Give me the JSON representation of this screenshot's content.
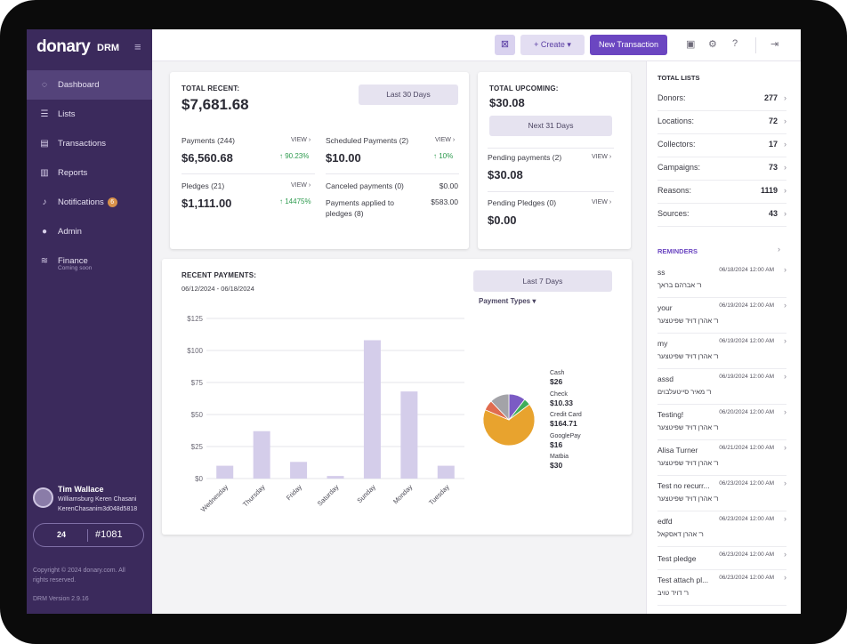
{
  "sidebar": {
    "logo": "donary",
    "logo_suffix": "DRM",
    "items": [
      {
        "label": "Dashboard",
        "icon": "dashboard-icon"
      },
      {
        "label": "Lists",
        "icon": "list-icon"
      },
      {
        "label": "Transactions",
        "icon": "transactions-icon"
      },
      {
        "label": "Reports",
        "icon": "reports-icon"
      },
      {
        "label": "Notifications",
        "icon": "bell-icon",
        "badge": "6"
      },
      {
        "label": "Admin",
        "icon": "user-icon"
      },
      {
        "label": "Finance",
        "icon": "finance-icon",
        "sub": "Coming soon"
      }
    ],
    "user": {
      "name": "Tim Wallace",
      "org": "Williamsburg Keren Chasani",
      "id": "KerenChasanim3d048d5818"
    },
    "pill": {
      "logo": "24",
      "number": "#1081"
    },
    "copyright": "Copyright © 2024 donary.com. All rights reserved.",
    "version": "DRM Version 2.9.16"
  },
  "topbar": {
    "create_label": "+ Create ▾",
    "new_transaction_label": "New Transaction",
    "help": "?"
  },
  "recent": {
    "title": "TOTAL RECENT:",
    "total": "$7,681.68",
    "range": "Last 30 Days",
    "payments_label": "Payments (244)",
    "payments_value": "$6,560.68",
    "payments_change": "90.23%",
    "pledges_label": "Pledges (21)",
    "pledges_value": "$1,111.00",
    "pledges_change": "14475%",
    "scheduled_label": "Scheduled Payments (2)",
    "scheduled_value": "$10.00",
    "scheduled_change": "10%",
    "canceled_label": "Canceled payments (0)",
    "canceled_value": "$0.00",
    "applied_label": "Payments applied to pledges (8)",
    "applied_value": "$583.00",
    "view": "VIEW"
  },
  "upcoming": {
    "title": "TOTAL UPCOMING:",
    "total": "$30.08",
    "range": "Next 31 Days",
    "pending_payments_label": "Pending payments (2)",
    "pending_payments_value": "$30.08",
    "pending_pledges_label": "Pending Pledges (0)",
    "pending_pledges_value": "$0.00",
    "view": "VIEW"
  },
  "recent_payments": {
    "title": "RECENT PAYMENTS:",
    "dates": "06/12/2024 - 06/18/2024",
    "range": "Last 7 Days",
    "types_label": "Payment Types ▾"
  },
  "chart_data": [
    {
      "type": "bar",
      "categories": [
        "Wednesday",
        "Thursday",
        "Friday",
        "Saturday",
        "Sunday",
        "Monday",
        "Tuesday"
      ],
      "values": [
        10,
        37,
        13,
        2,
        108,
        68,
        10
      ],
      "ylim": [
        0,
        125
      ],
      "yticks": [
        "$0",
        "$25",
        "$50",
        "$75",
        "$100",
        "$125"
      ],
      "grid": true,
      "color": "#d4cdea"
    },
    {
      "type": "pie",
      "labels": [
        "Cash",
        "Check",
        "Credit Card",
        "GooglePay",
        "Matbia"
      ],
      "value_labels": [
        "$26",
        "$10.33",
        "$164.71",
        "$16",
        "$30"
      ],
      "values": [
        26,
        10.33,
        164.71,
        16,
        30
      ],
      "colors": [
        "#7b5bc4",
        "#3fae5a",
        "#e8a32e",
        "#e06c4f",
        "#a3a3a8"
      ]
    }
  ],
  "total_lists": {
    "title": "TOTAL LISTS",
    "rows": [
      {
        "label": "Donors:",
        "value": "277"
      },
      {
        "label": "Locations:",
        "value": "72"
      },
      {
        "label": "Collectors:",
        "value": "17"
      },
      {
        "label": "Campaigns:",
        "value": "73"
      },
      {
        "label": "Reasons:",
        "value": "1119"
      },
      {
        "label": "Sources:",
        "value": "43"
      }
    ]
  },
  "reminders": {
    "title": "REMINDERS",
    "items": [
      {
        "title": "ss",
        "date": "06/18/2024 12:00 AM",
        "name": "ר' אברהם בראך"
      },
      {
        "title": "your",
        "date": "06/19/2024 12:00 AM",
        "name": "ר' אהרן דויד שפיטצער"
      },
      {
        "title": "my",
        "date": "06/19/2024 12:00 AM",
        "name": "ר' אהרן דויד שפיטצער"
      },
      {
        "title": "assd",
        "date": "06/19/2024 12:00 AM",
        "name": "ר' מאיר סייטעלבוים"
      },
      {
        "title": "Testing!",
        "date": "06/20/2024 12:00 AM",
        "name": "ר' אהרן דויד שפיטצער"
      },
      {
        "title": "Alisa Turner",
        "date": "06/21/2024 12:00 AM",
        "name": "ר' אהרן דויד שפיטצער"
      },
      {
        "title": "Test no recurr...",
        "date": "06/23/2024 12:00 AM",
        "name": "ר' אהרן דויד שפיטצער"
      },
      {
        "title": "edfd",
        "date": "06/23/2024 12:00 AM",
        "name": "ר' אהרן דאסקאל"
      },
      {
        "title": "Test pledge",
        "date": "06/23/2024 12:00 AM",
        "name": ""
      },
      {
        "title": "Test attach pl...",
        "date": "06/23/2024 12:00 AM",
        "name": "ר' דויד טויב"
      }
    ]
  }
}
